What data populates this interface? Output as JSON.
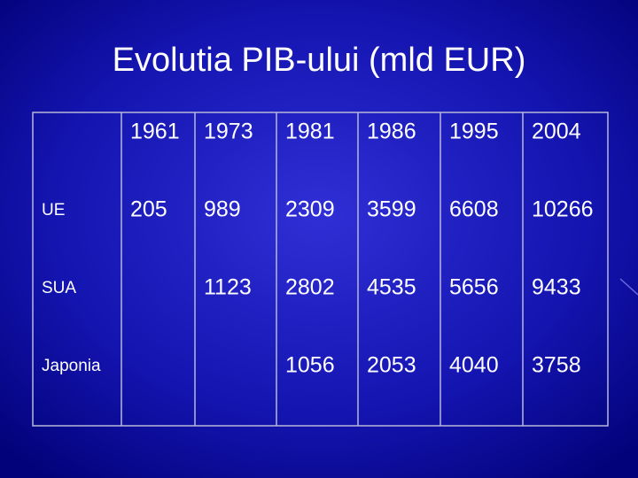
{
  "title": "Evolutia PIB-ului (mld EUR)",
  "table": {
    "header": [
      null,
      1961,
      1973,
      1981,
      1986,
      1995,
      2004
    ],
    "rows": [
      [
        "UE",
        205,
        989,
        2309,
        3599,
        6608,
        10266
      ],
      [
        "SUA",
        null,
        1123,
        2802,
        4535,
        5656,
        9433
      ],
      [
        "Japonia",
        null,
        null,
        1056,
        2053,
        4040,
        3758
      ]
    ]
  }
}
